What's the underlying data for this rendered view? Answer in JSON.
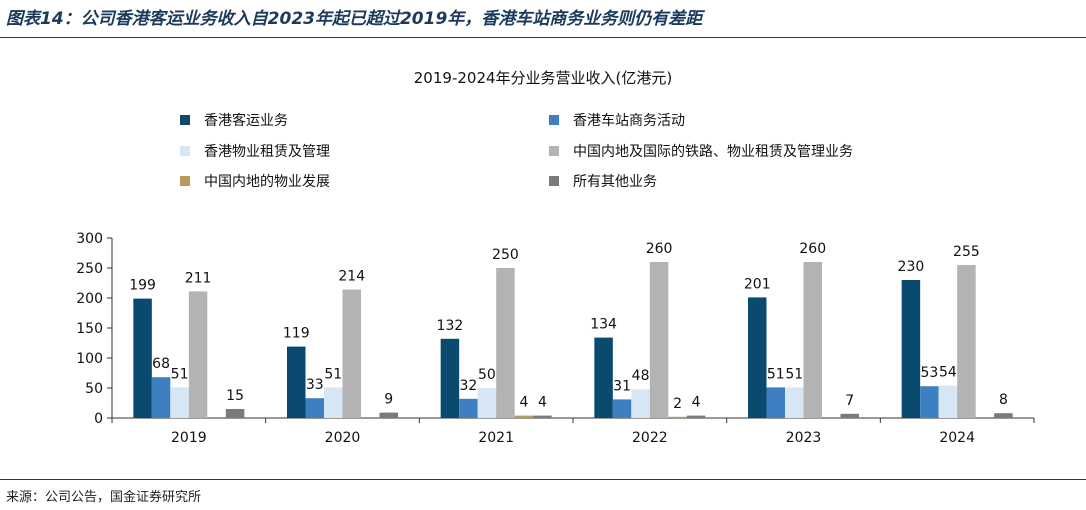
{
  "figure": {
    "title": "图表14：公司香港客运业务收入自2023年起已超过2019年，香港车站商务业务则仍有差距",
    "source": "来源：公司公告，国金证券研究所"
  },
  "chart_data": {
    "type": "bar",
    "title": "2019-2024年分业务营业收入(亿港元)",
    "xlabel": "",
    "ylabel": "",
    "ylim": [
      0,
      300
    ],
    "yticks": [
      0,
      50,
      100,
      150,
      200,
      250,
      300
    ],
    "grid": false,
    "legend_position": "top",
    "categories": [
      "2019",
      "2020",
      "2021",
      "2022",
      "2023",
      "2024"
    ],
    "series": [
      {
        "name": "香港客运业务",
        "color": "#0b4a6f",
        "values": [
          199,
          119,
          132,
          134,
          201,
          230
        ]
      },
      {
        "name": "香港车站商务活动",
        "color": "#3d7fc1",
        "values": [
          68,
          33,
          32,
          31,
          51,
          53
        ]
      },
      {
        "name": "香港物业租赁及管理",
        "color": "#d6e6f4",
        "values": [
          51,
          51,
          50,
          48,
          51,
          54
        ]
      },
      {
        "name": "中国内地及国际的铁路、物业租赁及管理业务",
        "color": "#b3b3b3",
        "values": [
          211,
          214,
          250,
          260,
          260,
          255
        ]
      },
      {
        "name": "中国内地的物业发展",
        "color": "#b99a5a",
        "values": [
          0,
          0,
          4,
          2,
          0,
          0
        ]
      },
      {
        "name": "所有其他业务",
        "color": "#7a7a7a",
        "values": [
          15,
          9,
          4,
          4,
          7,
          8
        ]
      }
    ],
    "data_labels": [
      [
        "199",
        "68",
        "51",
        "211",
        "",
        "15"
      ],
      [
        "119",
        "33",
        "51",
        "214",
        "",
        "9"
      ],
      [
        "132",
        "32",
        "50",
        "250",
        "4",
        "4"
      ],
      [
        "134",
        "31",
        "48",
        "260",
        "2",
        "4"
      ],
      [
        "201",
        "51",
        "51",
        "260",
        "",
        "7"
      ],
      [
        "230",
        "53",
        "54",
        "255",
        "",
        "8"
      ]
    ]
  }
}
